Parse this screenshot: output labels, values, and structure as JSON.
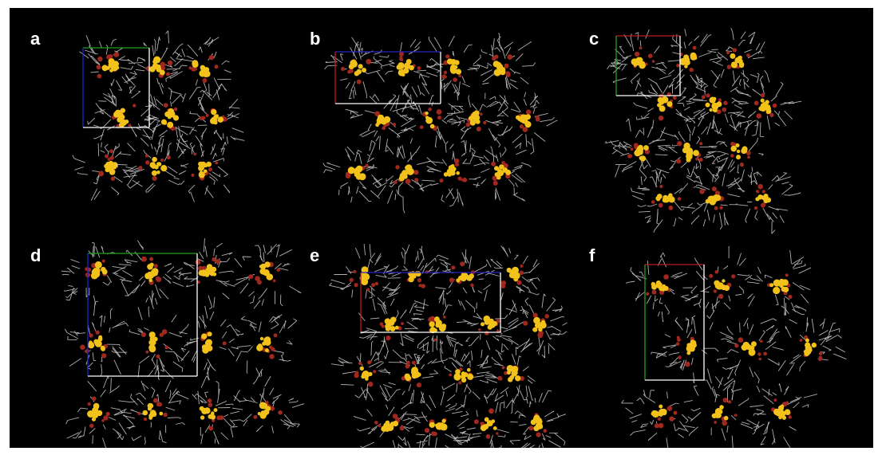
{
  "figure": {
    "background": "#000000",
    "panels": [
      {
        "label": "a"
      },
      {
        "label": "b"
      },
      {
        "label": "c"
      },
      {
        "label": "d"
      },
      {
        "label": "e"
      },
      {
        "label": "f"
      }
    ]
  },
  "colors": {
    "wireframe": "#cfcfcf",
    "sulfur": "#f2c21a",
    "oxygen": "#a0281e",
    "axis_a": "#b81f1f",
    "axis_b": "#1fa01f",
    "axis_c": "#2424c8",
    "cell_edge": "#ffffff"
  }
}
